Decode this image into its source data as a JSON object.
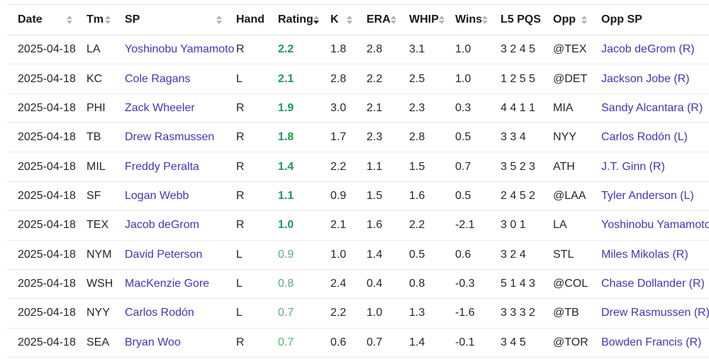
{
  "table": {
    "sorted_by": "Rating",
    "sort_direction": "desc",
    "columns": [
      {
        "key": "date",
        "label": "Date",
        "sortable": true
      },
      {
        "key": "tm",
        "label": "Tm",
        "sortable": true
      },
      {
        "key": "sp",
        "label": "SP",
        "sortable": true
      },
      {
        "key": "hand",
        "label": "Hand",
        "sortable": false
      },
      {
        "key": "rating",
        "label": "Rating",
        "sortable": true,
        "sorted": "desc"
      },
      {
        "key": "k",
        "label": "K",
        "sortable": true
      },
      {
        "key": "era",
        "label": "ERA",
        "sortable": true
      },
      {
        "key": "whip",
        "label": "WHIP",
        "sortable": true
      },
      {
        "key": "wins",
        "label": "Wins",
        "sortable": true
      },
      {
        "key": "l5pqs",
        "label": "L5 PQS",
        "sortable": false
      },
      {
        "key": "opp",
        "label": "Opp",
        "sortable": true
      },
      {
        "key": "opp_sp",
        "label": "Opp SP",
        "sortable": false
      }
    ],
    "rows": [
      {
        "date": "2025-04-18",
        "tm": "LA",
        "sp": "Yoshinobu Yamamoto",
        "hand": "R",
        "rating": "2.2",
        "rating_tier": "strong",
        "k": "1.8",
        "era": "2.8",
        "whip": "3.1",
        "wins": "1.0",
        "l5pqs": "3 2 4 5",
        "opp": "@TEX",
        "opp_sp": "Jacob deGrom (R)"
      },
      {
        "date": "2025-04-18",
        "tm": "KC",
        "sp": "Cole Ragans",
        "hand": "L",
        "rating": "2.1",
        "rating_tier": "strong",
        "k": "2.8",
        "era": "2.2",
        "whip": "2.5",
        "wins": "1.0",
        "l5pqs": "1 2 5 5",
        "opp": "@DET",
        "opp_sp": "Jackson Jobe (R)"
      },
      {
        "date": "2025-04-18",
        "tm": "PHI",
        "sp": "Zack Wheeler",
        "hand": "R",
        "rating": "1.9",
        "rating_tier": "strong",
        "k": "3.0",
        "era": "2.1",
        "whip": "2.3",
        "wins": "0.3",
        "l5pqs": "4 4 1 1",
        "opp": "MIA",
        "opp_sp": "Sandy Alcantara (R)"
      },
      {
        "date": "2025-04-18",
        "tm": "TB",
        "sp": "Drew Rasmussen",
        "hand": "R",
        "rating": "1.8",
        "rating_tier": "strong",
        "k": "1.7",
        "era": "2.3",
        "whip": "2.8",
        "wins": "0.5",
        "l5pqs": "3 3 4",
        "opp": "NYY",
        "opp_sp": "Carlos Rodón (L)"
      },
      {
        "date": "2025-04-18",
        "tm": "MIL",
        "sp": "Freddy Peralta",
        "hand": "R",
        "rating": "1.4",
        "rating_tier": "strong",
        "k": "2.2",
        "era": "1.1",
        "whip": "1.5",
        "wins": "0.7",
        "l5pqs": "3 5 2 3",
        "opp": "ATH",
        "opp_sp": "J.T. Ginn (R)"
      },
      {
        "date": "2025-04-18",
        "tm": "SF",
        "sp": "Logan Webb",
        "hand": "R",
        "rating": "1.1",
        "rating_tier": "strong",
        "k": "0.9",
        "era": "1.5",
        "whip": "1.6",
        "wins": "0.5",
        "l5pqs": "2 4 5 2",
        "opp": "@LAA",
        "opp_sp": "Tyler Anderson (L)"
      },
      {
        "date": "2025-04-18",
        "tm": "TEX",
        "sp": "Jacob deGrom",
        "hand": "R",
        "rating": "1.0",
        "rating_tier": "strong",
        "k": "2.1",
        "era": "1.6",
        "whip": "2.2",
        "wins": "-2.1",
        "l5pqs": "3 0 1",
        "opp": "LA",
        "opp_sp": "Yoshinobu Yamamoto"
      },
      {
        "date": "2025-04-18",
        "tm": "NYM",
        "sp": "David Peterson",
        "hand": "L",
        "rating": "0.9",
        "rating_tier": "light",
        "k": "1.0",
        "era": "1.4",
        "whip": "0.5",
        "wins": "0.6",
        "l5pqs": "3 2 4",
        "opp": "STL",
        "opp_sp": "Miles Mikolas (R)"
      },
      {
        "date": "2025-04-18",
        "tm": "WSH",
        "sp": "MacKenzie Gore",
        "hand": "L",
        "rating": "0.8",
        "rating_tier": "light",
        "k": "2.4",
        "era": "0.4",
        "whip": "0.8",
        "wins": "-0.3",
        "l5pqs": "5 1 4 3",
        "opp": "@COL",
        "opp_sp": "Chase Dollander (R)"
      },
      {
        "date": "2025-04-18",
        "tm": "NYY",
        "sp": "Carlos Rodón",
        "hand": "L",
        "rating": "0.7",
        "rating_tier": "light",
        "k": "2.2",
        "era": "1.0",
        "whip": "1.3",
        "wins": "-1.6",
        "l5pqs": "3 3 3 2",
        "opp": "@TB",
        "opp_sp": "Drew Rasmussen (R)"
      },
      {
        "date": "2025-04-18",
        "tm": "SEA",
        "sp": "Bryan Woo",
        "hand": "R",
        "rating": "0.7",
        "rating_tier": "light",
        "k": "0.6",
        "era": "0.7",
        "whip": "1.4",
        "wins": "-0.1",
        "l5pqs": "3 4 5",
        "opp": "@TOR",
        "opp_sp": "Bowden Francis (R)"
      }
    ]
  },
  "colors": {
    "link_purple": "#4733b9",
    "rating_strong_green": "#1d9b52",
    "rating_light_green": "#55af72",
    "header_text": "#17191d",
    "row_border": "#e7e9ec"
  }
}
